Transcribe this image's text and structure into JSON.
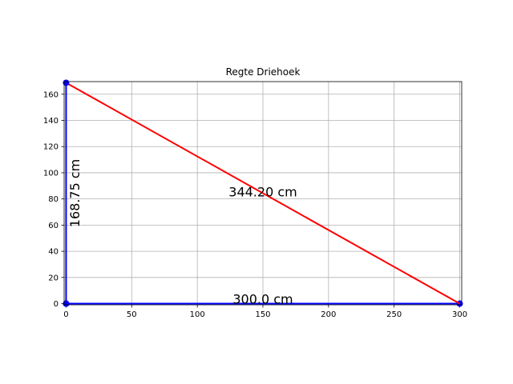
{
  "chart_data": {
    "type": "line",
    "title": "Regte Driehoek",
    "xlabel": "",
    "ylabel": "",
    "xlim": [
      0,
      300
    ],
    "ylim": [
      0,
      168.75
    ],
    "grid": true,
    "x_ticks": [
      0,
      50,
      100,
      150,
      200,
      250,
      300
    ],
    "y_ticks": [
      0,
      20,
      40,
      60,
      80,
      100,
      120,
      140,
      160
    ],
    "series": [
      {
        "color": "#0000ff",
        "x": [
          0,
          300
        ],
        "y": [
          0,
          0
        ],
        "markers": true
      },
      {
        "color": "#ff0000",
        "x": [
          0,
          300
        ],
        "y": [
          168.75,
          0
        ],
        "markers": false
      },
      {
        "color": "#0000ff",
        "x": [
          0,
          0
        ],
        "y": [
          0,
          168.75
        ],
        "markers": true
      }
    ],
    "annotations": [
      {
        "text": "300.0 cm",
        "x": 150,
        "y": 0,
        "rotation": 0
      },
      {
        "text": "344.20 cm",
        "x": 150,
        "y": 84.375,
        "rotation": 0
      },
      {
        "text": "168.75 cm",
        "x": 0,
        "y": 84.375,
        "rotation": -90
      }
    ]
  }
}
